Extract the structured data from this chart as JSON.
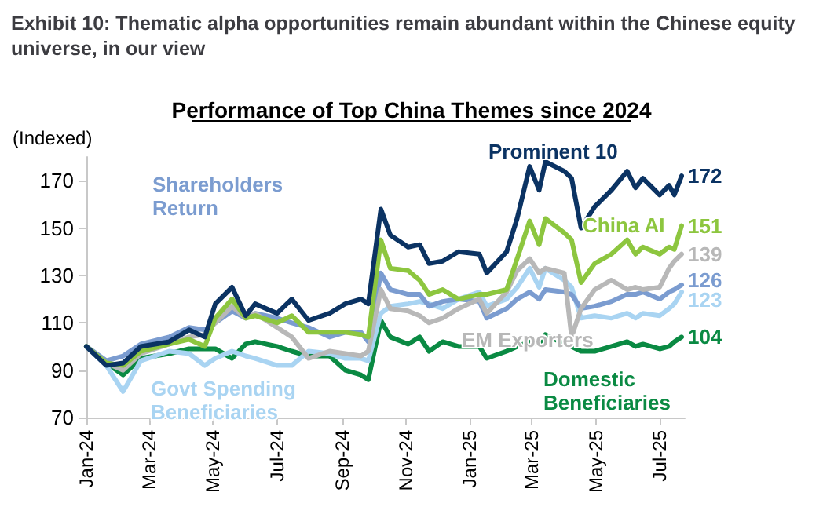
{
  "chart_data": {
    "type": "line",
    "title": "Exhibit 10: Thematic alpha opportunities remain abundant within the Chinese equity universe, in our view",
    "subtitle": "Performance of Top China Themes since 2024",
    "ylabel": "(Indexed)",
    "x": [
      "2024-01-01",
      "2024-01-20",
      "2024-02-05",
      "2024-02-22",
      "2024-03-20",
      "2024-04-08",
      "2024-04-23",
      "2024-05-03",
      "2024-05-19",
      "2024-06-01",
      "2024-06-10",
      "2024-07-01",
      "2024-07-15",
      "2024-07-31",
      "2024-08-20",
      "2024-09-04",
      "2024-09-19",
      "2024-09-26",
      "2024-10-08",
      "2024-10-17",
      "2024-11-03",
      "2024-11-14",
      "2024-11-23",
      "2024-12-06",
      "2024-12-21",
      "2025-01-10",
      "2025-01-17",
      "2025-02-05",
      "2025-02-15",
      "2025-02-27",
      "2025-03-08",
      "2025-03-14",
      "2025-04-01",
      "2025-04-08",
      "2025-04-17",
      "2025-04-30",
      "2025-05-16",
      "2025-05-31",
      "2025-06-08",
      "2025-06-15",
      "2025-07-01",
      "2025-07-10",
      "2025-07-15",
      "2025-07-22"
    ],
    "series": [
      {
        "name": "Prominent 10",
        "color": "#0b3363",
        "values": [
          100,
          92,
          93,
          100,
          102,
          107,
          104,
          118,
          125,
          113,
          118,
          114,
          120,
          111,
          114,
          118,
          120,
          118,
          158,
          147,
          142,
          143,
          135,
          136,
          140,
          139,
          131,
          140,
          154,
          176,
          166,
          178,
          174,
          171,
          150,
          159,
          166,
          174,
          167,
          171,
          164,
          168,
          164,
          172
        ],
        "value_labels": [
          null,
          null,
          null,
          null,
          null,
          null,
          null,
          null,
          null,
          null,
          null,
          null,
          null,
          null,
          null,
          null,
          null,
          null,
          null,
          null,
          null,
          null,
          null,
          null,
          null,
          null,
          null,
          null,
          null,
          null,
          null,
          null,
          null,
          null,
          null,
          null,
          null,
          null,
          null,
          null,
          null,
          null,
          null,
          "172"
        ]
      },
      {
        "name": "China AI",
        "color": "#8dc63f",
        "values": [
          100,
          93,
          92,
          98,
          101,
          103,
          100,
          112,
          120,
          112,
          113,
          110,
          113,
          106,
          106,
          106,
          105,
          104,
          145,
          133,
          132,
          128,
          122,
          124,
          120,
          122,
          122,
          124,
          137,
          153,
          143,
          154,
          148,
          145,
          127,
          135,
          139,
          145,
          139,
          142,
          139,
          142,
          141,
          151
        ],
        "value_labels": [
          null,
          null,
          null,
          null,
          null,
          null,
          null,
          null,
          null,
          null,
          null,
          null,
          null,
          null,
          null,
          null,
          null,
          null,
          null,
          null,
          null,
          null,
          null,
          null,
          null,
          null,
          null,
          null,
          null,
          null,
          null,
          null,
          null,
          null,
          null,
          null,
          null,
          null,
          null,
          null,
          null,
          null,
          null,
          "151"
        ]
      },
      {
        "name": "EM Exporters",
        "color": "#b8b8b8",
        "values": [
          100,
          93,
          90,
          97,
          101,
          104,
          105,
          110,
          117,
          112,
          114,
          108,
          104,
          95,
          98,
          97,
          96,
          98,
          124,
          116,
          115,
          113,
          110,
          112,
          116,
          120,
          114,
          123,
          132,
          137,
          131,
          133,
          131,
          104,
          116,
          124,
          128,
          124,
          125,
          124,
          125,
          133,
          136,
          139
        ],
        "value_labels": [
          null,
          null,
          null,
          null,
          null,
          null,
          null,
          null,
          null,
          null,
          null,
          null,
          null,
          null,
          null,
          null,
          null,
          null,
          null,
          null,
          null,
          null,
          null,
          null,
          null,
          null,
          null,
          null,
          null,
          null,
          null,
          null,
          null,
          null,
          null,
          null,
          null,
          null,
          null,
          null,
          null,
          null,
          null,
          "139"
        ]
      },
      {
        "name": "Shareholders Return",
        "color": "#7b9cd0",
        "values": [
          100,
          94,
          96,
          101,
          104,
          108,
          107,
          110,
          115,
          112,
          114,
          112,
          110,
          108,
          104,
          106,
          106,
          102,
          131,
          124,
          122,
          122,
          117,
          119,
          120,
          119,
          112,
          116,
          120,
          123,
          120,
          124,
          123,
          122,
          116,
          117,
          119,
          122,
          122,
          123,
          120,
          123,
          124,
          126
        ],
        "value_labels": [
          null,
          null,
          null,
          null,
          null,
          null,
          null,
          null,
          null,
          null,
          null,
          null,
          null,
          null,
          null,
          null,
          null,
          null,
          null,
          null,
          null,
          null,
          null,
          null,
          null,
          null,
          null,
          null,
          null,
          null,
          null,
          null,
          null,
          null,
          null,
          null,
          null,
          null,
          null,
          null,
          null,
          null,
          null,
          "126"
        ]
      },
      {
        "name": "Govt Spending Beneficiaries",
        "color": "#a9d4f2",
        "values": [
          100,
          92,
          81,
          94,
          98,
          97,
          92,
          95,
          98,
          96,
          95,
          92,
          92,
          98,
          97,
          95,
          95,
          94,
          114,
          117,
          118,
          119,
          118,
          116,
          120,
          123,
          117,
          120,
          125,
          133,
          125,
          133,
          128,
          125,
          112,
          113,
          112,
          114,
          112,
          114,
          113,
          116,
          118,
          123
        ],
        "value_labels": [
          null,
          null,
          null,
          null,
          null,
          null,
          null,
          null,
          null,
          null,
          null,
          null,
          null,
          null,
          null,
          null,
          null,
          null,
          null,
          null,
          null,
          null,
          null,
          null,
          null,
          null,
          null,
          null,
          null,
          null,
          null,
          null,
          null,
          null,
          null,
          null,
          null,
          null,
          null,
          null,
          null,
          null,
          null,
          "123"
        ]
      },
      {
        "name": "Domestic Beneficiaries",
        "color": "#0a8a43",
        "values": [
          100,
          93,
          88,
          95,
          97,
          99,
          99,
          99,
          95,
          101,
          102,
          100,
          98,
          96,
          96,
          90,
          88,
          86,
          111,
          104,
          101,
          104,
          98,
          102,
          100,
          100,
          95,
          98,
          100,
          102,
          101,
          105,
          101,
          100,
          98,
          98,
          100,
          102,
          100,
          101,
          99,
          100,
          102,
          104
        ],
        "value_labels": [
          null,
          null,
          null,
          null,
          null,
          null,
          null,
          null,
          null,
          null,
          null,
          null,
          null,
          null,
          null,
          null,
          null,
          null,
          null,
          null,
          null,
          null,
          null,
          null,
          null,
          null,
          null,
          null,
          null,
          null,
          null,
          null,
          null,
          null,
          null,
          null,
          null,
          null,
          null,
          null,
          null,
          null,
          null,
          "104"
        ]
      }
    ],
    "xlim": [
      "2024-01-01",
      "2025-07-25"
    ],
    "xticks": [
      {
        "value": "2024-01-01",
        "label": "Jan-24"
      },
      {
        "value": "2024-03-01",
        "label": "Mar-24"
      },
      {
        "value": "2024-05-01",
        "label": "May-24"
      },
      {
        "value": "2024-07-01",
        "label": "Jul-24"
      },
      {
        "value": "2024-09-01",
        "label": "Sep-24"
      },
      {
        "value": "2024-11-01",
        "label": "Nov-24"
      },
      {
        "value": "2025-01-01",
        "label": "Jan-25"
      },
      {
        "value": "2025-03-01",
        "label": "Mar-25"
      },
      {
        "value": "2025-05-01",
        "label": "May-25"
      },
      {
        "value": "2025-07-01",
        "label": "Jul-25"
      }
    ],
    "ylim": [
      70,
      180
    ],
    "yticks": [
      70,
      90,
      110,
      130,
      150,
      170
    ],
    "grid": false,
    "legend": false,
    "marker": "none",
    "line_style": "solid"
  }
}
